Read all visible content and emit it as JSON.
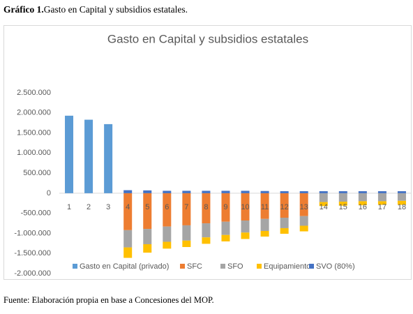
{
  "caption_label": "Gráfico 1.",
  "caption_text": "Gasto en Capital y subsidios estatales.",
  "source": "Fuente: Elaboración propia en base a Concesiones del MOP.",
  "chart_data": {
    "type": "stacked_bar",
    "title": "Gasto en Capital y subsidios estatales",
    "categories": [
      "1",
      "2",
      "3",
      "4",
      "5",
      "6",
      "7",
      "8",
      "9",
      "10",
      "11",
      "12",
      "13",
      "14",
      "15",
      "16",
      "17",
      "18"
    ],
    "series": [
      {
        "name": "Gasto en Capital (privado)",
        "color": "#5b9bd5",
        "values": [
          1930000,
          1830000,
          1720000,
          null,
          null,
          null,
          null,
          null,
          null,
          null,
          null,
          null,
          null,
          null,
          null,
          null,
          null,
          null
        ]
      },
      {
        "name": "SFC",
        "color": "#ed7d31",
        "values": [
          null,
          null,
          null,
          -920000,
          -890000,
          -830000,
          -800000,
          -750000,
          -710000,
          -680000,
          -640000,
          -610000,
          -570000,
          null,
          null,
          null,
          null,
          null
        ]
      },
      {
        "name": "SFO",
        "color": "#a5a5a5",
        "values": [
          null,
          null,
          null,
          -430000,
          -380000,
          -380000,
          -380000,
          -350000,
          -330000,
          -300000,
          -300000,
          -260000,
          -240000,
          -220000,
          -210000,
          -200000,
          -200000,
          -190000
        ]
      },
      {
        "name": "Equipamiento",
        "color": "#ffc000",
        "values": [
          null,
          null,
          null,
          -260000,
          -210000,
          -170000,
          -160000,
          -160000,
          -160000,
          -160000,
          -140000,
          -140000,
          -140000,
          -100000,
          -100000,
          -100000,
          -90000,
          -100000
        ]
      },
      {
        "name": "SVO (80%)",
        "color": "#4472c4",
        "values": [
          null,
          null,
          null,
          75000,
          70000,
          60000,
          60000,
          60000,
          60000,
          60000,
          55000,
          50000,
          50000,
          50000,
          50000,
          50000,
          50000,
          50000
        ]
      }
    ],
    "ylim": [
      -2000000,
      2500000
    ],
    "yticks": [
      {
        "value": -2000000,
        "label": "-2.000.000"
      },
      {
        "value": -1500000,
        "label": "-1.500.000"
      },
      {
        "value": -1000000,
        "label": "-1.000.000"
      },
      {
        "value": -500000,
        "label": "-500.000"
      },
      0,
      {
        "value": 500000,
        "label": "500.000"
      },
      {
        "value": 1000000,
        "label": "1.000.000"
      },
      {
        "value": 1500000,
        "label": "1.500.000"
      },
      {
        "value": 2000000,
        "label": "2.000.000"
      },
      {
        "value": 2500000,
        "label": "2.500.000"
      }
    ],
    "grid": false,
    "legend": "bottom"
  }
}
